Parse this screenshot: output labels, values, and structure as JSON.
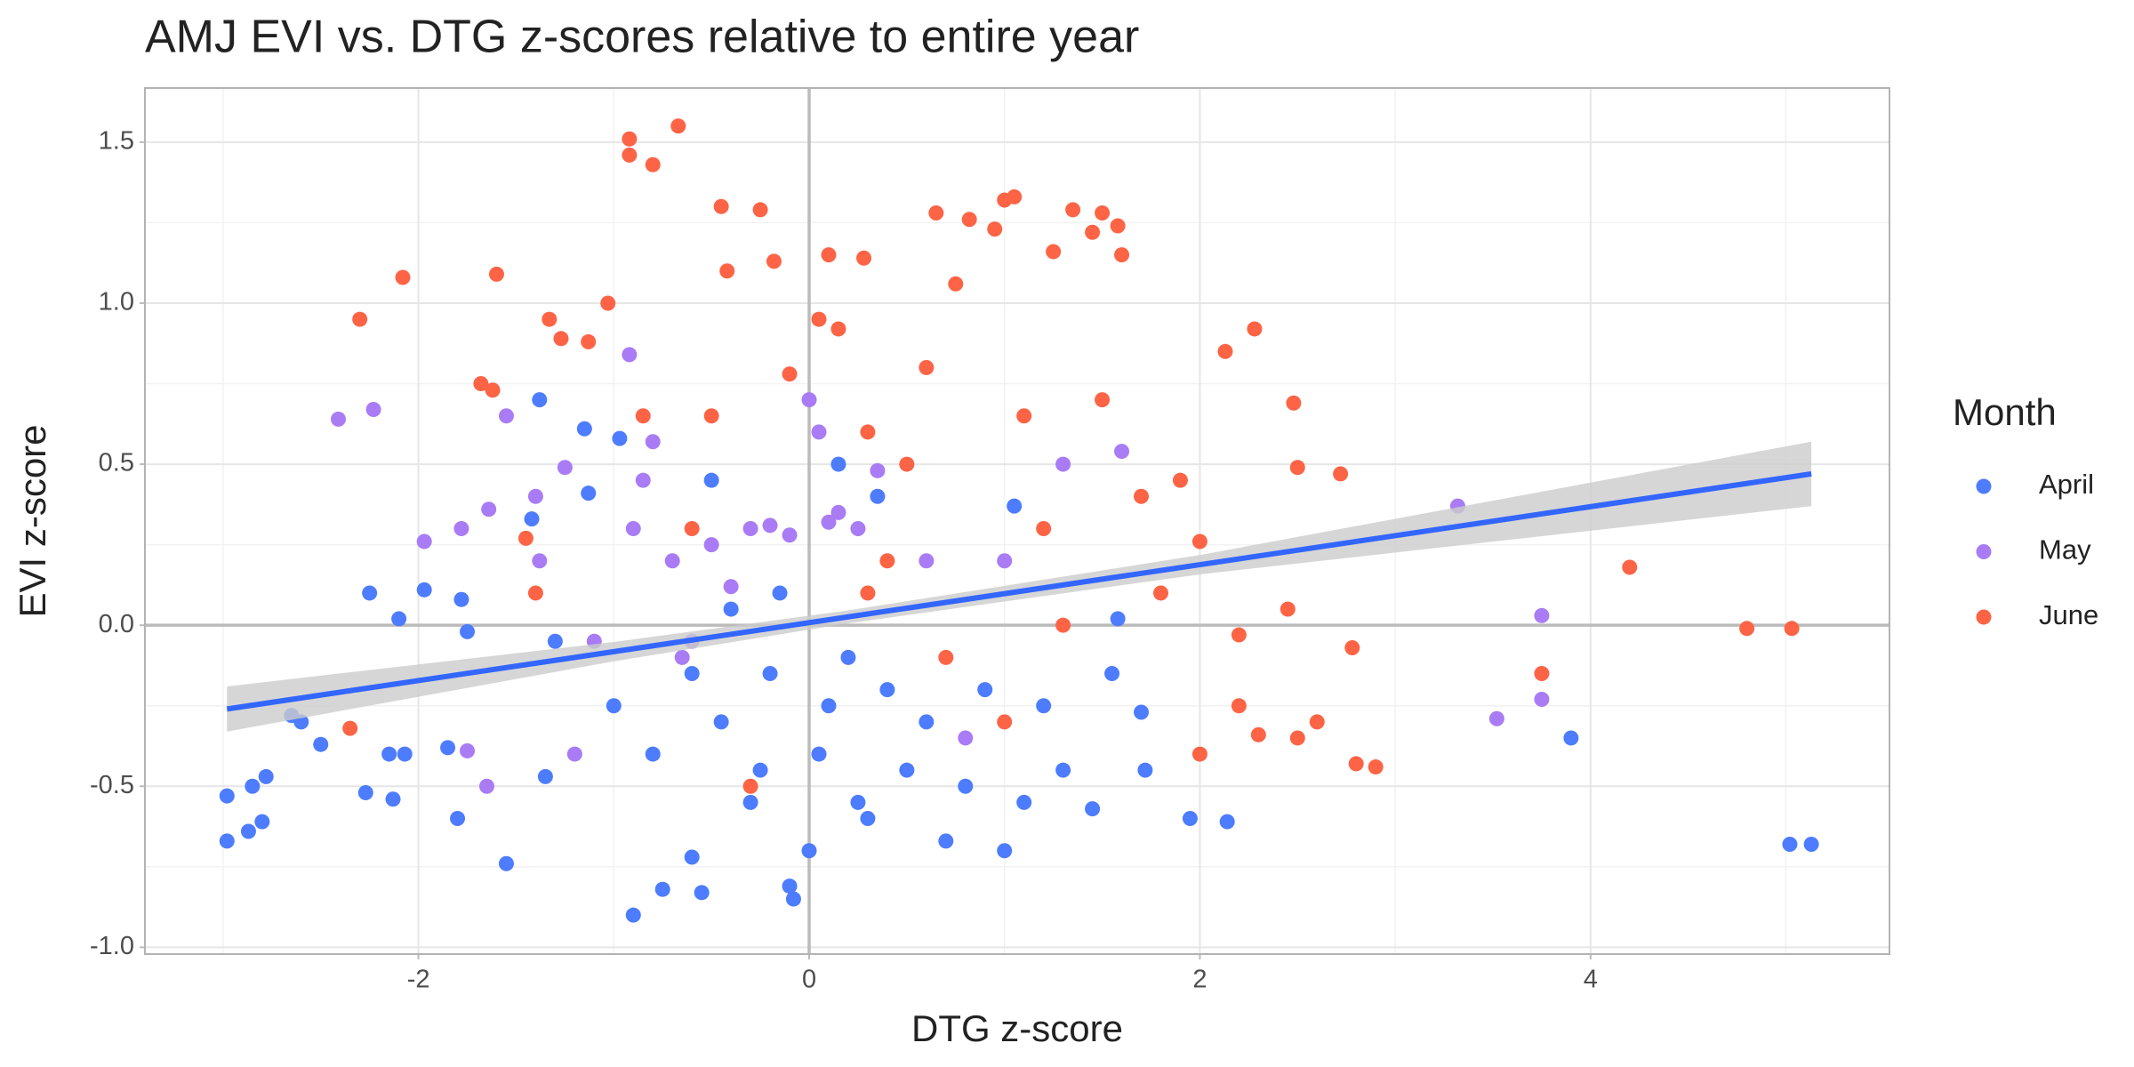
{
  "chart_data": {
    "type": "scatter",
    "title": "AMJ EVI vs. DTG z-scores relative to entire year",
    "x_label": "DTG z-score",
    "y_label": "EVI z-score",
    "legend_title": "Month",
    "legend_position": "right",
    "xlim": [
      -3.4,
      5.53
    ],
    "ylim": [
      -1.021,
      1.668
    ],
    "xticks": [
      -2,
      0,
      2,
      4
    ],
    "yticks": [
      {
        "value": -1,
        "label": "-1.0"
      },
      -0.5,
      {
        "value": 0,
        "label": "0.0"
      },
      0.5,
      {
        "value": 1,
        "label": "1.0"
      },
      1.5
    ],
    "x_minor_grid": [
      -3,
      -1,
      1,
      3,
      5
    ],
    "y_minor_grid": [
      -0.75,
      -0.25,
      0.25,
      0.75,
      1.25
    ],
    "zero_lines": true,
    "grid": true,
    "series": [
      {
        "name": "April",
        "color": "#4d7cfe",
        "x": [
          -2.98,
          -2.98,
          -2.87,
          -2.85,
          -2.78,
          -2.8,
          -2.65,
          -2.6,
          -2.5,
          -2.25,
          -2.27,
          -2.15,
          -2.1,
          -2.07,
          -2.13,
          -1.97,
          -1.85,
          -1.8,
          -1.78,
          -1.75,
          -1.55,
          -1.38,
          -1.42,
          -1.3,
          -1.35,
          -1.15,
          -1.13,
          -0.97,
          -0.9,
          -0.75,
          -0.6,
          -0.55,
          -0.4,
          -0.3,
          -0.2,
          -0.1,
          -0.08,
          0,
          0.05,
          0.1,
          0.2,
          0.3,
          0.4,
          0.5,
          0.6,
          0.7,
          0.8,
          0.9,
          1.0,
          1.1,
          1.2,
          1.3,
          1.45,
          1.55,
          1.58,
          1.7,
          1.72,
          1.95,
          2.14,
          3.9,
          5.02,
          5.13,
          -0.45,
          -0.6,
          -0.8,
          -1.0,
          -0.5,
          0.25,
          -0.25,
          0.35,
          1.05,
          -0.15,
          0.15
        ],
        "values": [
          -0.53,
          -0.67,
          -0.64,
          -0.5,
          -0.47,
          -0.61,
          -0.28,
          -0.3,
          -0.37,
          0.1,
          -0.52,
          -0.4,
          0.02,
          -0.4,
          -0.54,
          0.11,
          -0.38,
          -0.6,
          0.08,
          -0.02,
          -0.74,
          0.7,
          0.33,
          -0.05,
          -0.47,
          0.61,
          0.41,
          0.58,
          -0.9,
          -0.82,
          -0.72,
          -0.83,
          0.05,
          -0.55,
          -0.15,
          -0.81,
          -0.85,
          -0.7,
          -0.4,
          -0.25,
          -0.1,
          -0.6,
          -0.2,
          -0.45,
          -0.3,
          -0.67,
          -0.5,
          -0.2,
          -0.7,
          -0.55,
          -0.25,
          -0.45,
          -0.57,
          -0.15,
          0.02,
          -0.27,
          -0.45,
          -0.6,
          -0.61,
          -0.35,
          -0.68,
          -0.68,
          -0.3,
          -0.15,
          -0.4,
          -0.25,
          0.45,
          -0.55,
          -0.45,
          0.4,
          0.37,
          0.1,
          0.5
        ]
      },
      {
        "name": "May",
        "color": "#a97cf5",
        "x": [
          -2.41,
          -2.23,
          -1.97,
          -1.78,
          -1.75,
          -1.64,
          -1.65,
          -1.55,
          -1.38,
          -1.4,
          -1.25,
          -1.2,
          -1.1,
          -0.92,
          -0.8,
          -0.9,
          -0.7,
          -0.6,
          -0.5,
          -0.4,
          -0.3,
          -0.2,
          -0.1,
          0.0,
          0.05,
          0.1,
          0.15,
          0.25,
          0.35,
          0.6,
          0.8,
          1.0,
          1.3,
          1.6,
          3.32,
          3.52,
          3.75,
          3.75,
          -0.85,
          -0.65
        ],
        "values": [
          0.64,
          0.67,
          0.26,
          0.3,
          -0.39,
          0.36,
          -0.5,
          0.65,
          0.2,
          0.4,
          0.49,
          -0.4,
          -0.05,
          0.84,
          0.57,
          0.3,
          0.2,
          -0.05,
          0.25,
          0.12,
          0.3,
          0.31,
          0.28,
          0.7,
          0.6,
          0.32,
          0.35,
          0.3,
          0.48,
          0.2,
          -0.35,
          0.2,
          0.5,
          0.54,
          0.37,
          -0.29,
          0.03,
          -0.23,
          0.45,
          -0.1
        ]
      },
      {
        "name": "June",
        "color": "#fd6446",
        "x": [
          -2.35,
          -2.3,
          -2.08,
          -1.68,
          -1.6,
          -1.62,
          -1.45,
          -1.4,
          -1.33,
          -1.27,
          -1.13,
          -1.03,
          -0.92,
          -0.92,
          -0.8,
          -0.67,
          -0.85,
          -0.6,
          -0.45,
          -0.42,
          -0.25,
          -0.18,
          -0.1,
          0.05,
          0.1,
          0.15,
          0.28,
          0.3,
          0.4,
          0.5,
          0.6,
          0.65,
          0.75,
          0.82,
          0.95,
          1.0,
          1.05,
          1.1,
          1.2,
          1.25,
          1.35,
          1.45,
          1.5,
          1.58,
          1.6,
          1.5,
          1.7,
          1.8,
          1.9,
          2.0,
          2.0,
          2.13,
          2.2,
          2.28,
          2.2,
          2.3,
          2.45,
          2.48,
          2.5,
          2.5,
          2.6,
          2.78,
          2.72,
          2.8,
          2.9,
          4.2,
          4.8,
          5.03,
          3.75,
          0.7,
          1.0,
          -0.3,
          0.3,
          1.3,
          -0.5
        ],
        "values": [
          -0.32,
          0.95,
          1.08,
          0.75,
          1.09,
          0.73,
          0.27,
          0.1,
          0.95,
          0.89,
          0.88,
          1.0,
          1.51,
          1.46,
          1.43,
          1.55,
          0.65,
          0.3,
          1.3,
          1.1,
          1.29,
          1.13,
          0.78,
          0.95,
          1.15,
          0.92,
          1.14,
          0.6,
          0.2,
          0.5,
          0.8,
          1.28,
          1.06,
          1.26,
          1.23,
          1.32,
          1.33,
          0.65,
          0.3,
          1.16,
          1.29,
          1.22,
          1.28,
          1.24,
          1.15,
          0.7,
          0.4,
          0.1,
          0.45,
          0.26,
          -0.4,
          0.85,
          -0.03,
          0.92,
          -0.25,
          -0.34,
          0.05,
          0.69,
          0.49,
          -0.35,
          -0.3,
          -0.07,
          0.47,
          -0.43,
          -0.44,
          0.18,
          -0.01,
          -0.01,
          -0.15,
          -0.1,
          -0.3,
          -0.5,
          0.1,
          0.0,
          0.65
        ]
      }
    ],
    "smooth": {
      "color": "#3366ff",
      "band_color": "#cccccc",
      "x": [
        -2.98,
        -1,
        0.2,
        2,
        5.13
      ],
      "values": [
        -0.26,
        -0.082,
        0.026,
        0.188,
        0.47
      ],
      "lower": [
        -0.33,
        -0.112,
        0.006,
        0.158,
        0.37
      ],
      "upper": [
        -0.19,
        -0.052,
        0.046,
        0.218,
        0.57
      ]
    }
  }
}
